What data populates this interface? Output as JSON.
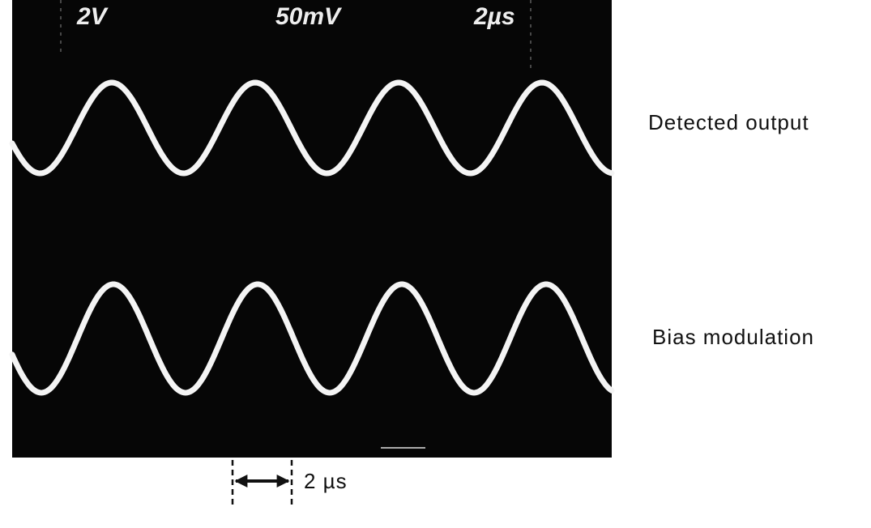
{
  "scope_readout": {
    "channel_1": "2V",
    "channel_2": "50mV",
    "timebase": "2µs"
  },
  "trace_labels": {
    "top": "Detected output",
    "bottom": "Bias modulation"
  },
  "scale_bar": {
    "label": "2 µs"
  }
}
